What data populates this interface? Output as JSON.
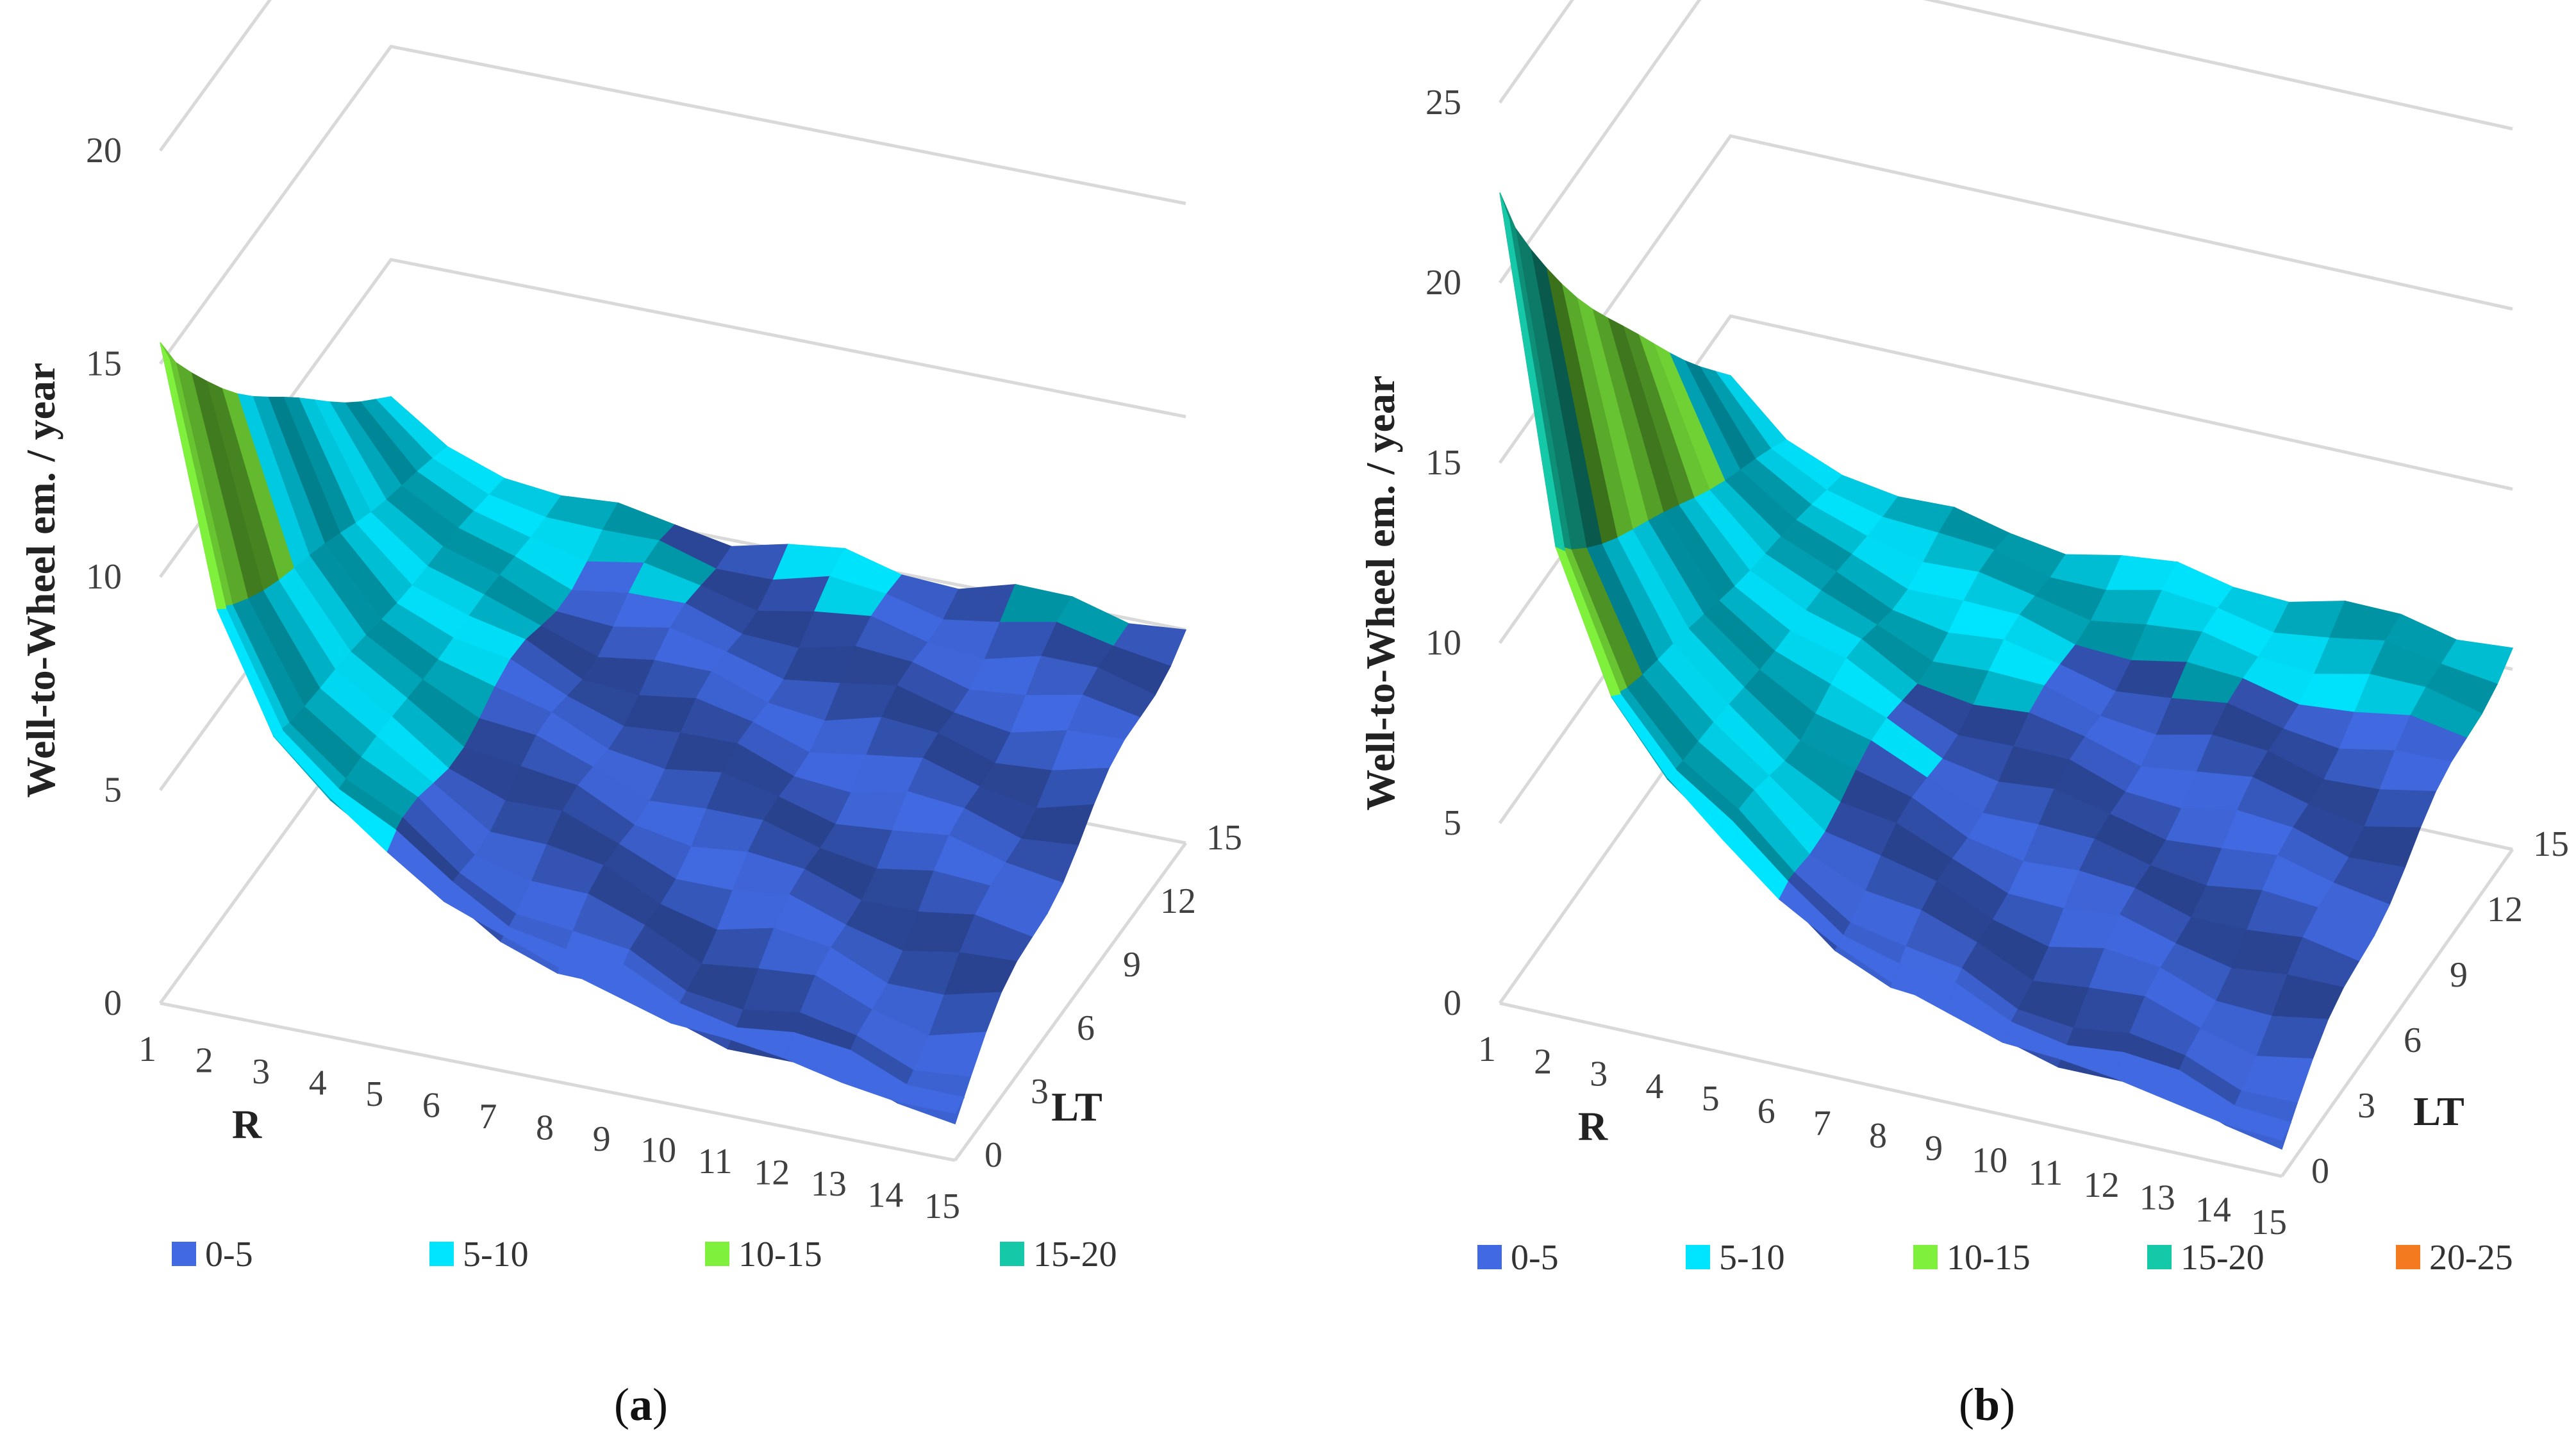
{
  "chart_data": [
    {
      "id": "a",
      "type": "surface",
      "caption_letter": "a",
      "ylabel": "Well-to-Wheel em. / year",
      "xlabel": "R",
      "zlabel": "LT",
      "ylim": [
        0,
        20
      ],
      "yticks": [
        "0",
        "5",
        "10",
        "15",
        "20"
      ],
      "xticks": [
        "1",
        "2",
        "3",
        "4",
        "5",
        "6",
        "7",
        "8",
        "9",
        "10",
        "11",
        "12",
        "13",
        "14",
        "15"
      ],
      "zticks": [
        "0",
        "3",
        "6",
        "9",
        "12",
        "15"
      ],
      "legend": [
        {
          "label": "0-5",
          "color": "#4169e1"
        },
        {
          "label": "5-10",
          "color": "#00e5ff"
        },
        {
          "label": "10-15",
          "color": "#7ff03c"
        },
        {
          "label": "15-20",
          "color": "#14c8a8"
        }
      ],
      "front_profile": [
        15.5,
        9.5,
        6.8,
        5.6,
        4.6,
        3.7,
        3.2,
        2.7,
        2.3,
        1.9,
        1.8,
        1.6,
        1.3,
        1.1,
        1.1
      ],
      "back_level": 5.2
    },
    {
      "id": "b",
      "type": "surface",
      "caption_letter": "b",
      "ylabel": "Well-to-Wheel em. / year",
      "xlabel": "R",
      "zlabel": "LT",
      "ylim": [
        0,
        25
      ],
      "yticks": [
        "0",
        "5",
        "10",
        "15",
        "20",
        "25"
      ],
      "xticks": [
        "1",
        "2",
        "3",
        "4",
        "5",
        "6",
        "7",
        "8",
        "9",
        "10",
        "11",
        "12",
        "13",
        "14",
        "15"
      ],
      "zticks": [
        "0",
        "3",
        "6",
        "9",
        "12",
        "15"
      ],
      "legend": [
        {
          "label": "0-5",
          "color": "#4169e1"
        },
        {
          "label": "5-10",
          "color": "#00e5ff"
        },
        {
          "label": "10-15",
          "color": "#7ff03c"
        },
        {
          "label": "15-20",
          "color": "#14c8a8"
        },
        {
          "label": "20-25",
          "color": "#f47a1f"
        }
      ],
      "front_profile": [
        22.5,
        13.0,
        9.2,
        7.3,
        5.9,
        4.6,
        3.7,
        3.0,
        2.5,
        2.0,
        1.9,
        1.7,
        1.4,
        1.1,
        1.0
      ],
      "back_level": 5.8
    }
  ]
}
